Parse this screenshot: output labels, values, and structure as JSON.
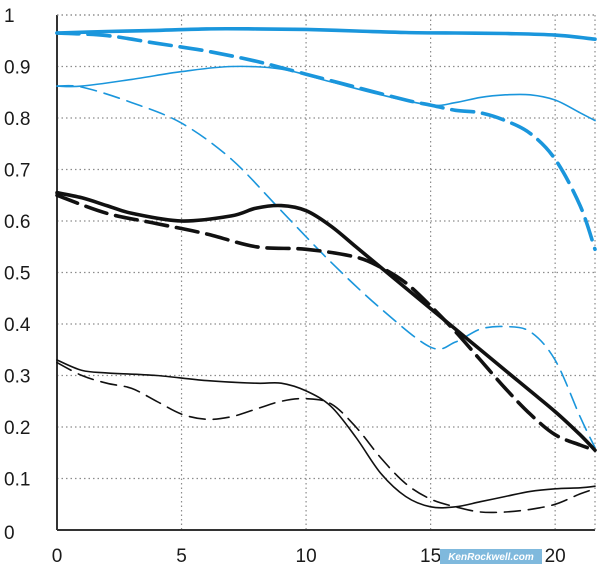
{
  "chart_data": {
    "type": "line",
    "title": "",
    "xlabel": "",
    "ylabel": "",
    "xlim": [
      0,
      21.6
    ],
    "ylim": [
      0,
      1
    ],
    "grid": true,
    "grid_style": "dotted",
    "x_ticks": [
      0,
      5,
      10,
      15,
      20
    ],
    "x_tick_labels": [
      "0",
      "5",
      "10",
      "15",
      "20"
    ],
    "y_ticks": [
      0.1,
      0.2,
      0.3,
      0.4,
      0.5,
      0.6,
      0.7,
      0.8,
      0.9,
      1
    ],
    "y_tick_labels": [
      "0.1",
      "0.2",
      "0.3",
      "0.4",
      "0.5",
      "0.6",
      "0.7",
      "0.8",
      "0.9",
      "1"
    ],
    "zero_label": "0",
    "series": [
      {
        "color": "#1a96dc",
        "width": "thick",
        "dash": "solid",
        "x": [
          0,
          2,
          4,
          6,
          8,
          10,
          12,
          14,
          16,
          18,
          20,
          21.6
        ],
        "y": [
          0.965,
          0.968,
          0.97,
          0.973,
          0.973,
          0.972,
          0.969,
          0.966,
          0.965,
          0.964,
          0.961,
          0.953
        ]
      },
      {
        "color": "#1a96dc",
        "width": "thick",
        "dash": "dashed",
        "x": [
          0,
          2,
          4,
          6,
          8,
          10,
          12,
          14,
          15,
          16,
          17,
          18,
          19,
          20,
          21,
          21.6
        ],
        "y": [
          0.965,
          0.96,
          0.945,
          0.93,
          0.91,
          0.885,
          0.86,
          0.835,
          0.825,
          0.815,
          0.81,
          0.795,
          0.77,
          0.72,
          0.63,
          0.545
        ]
      },
      {
        "color": "#1a96dc",
        "width": "thin",
        "dash": "solid",
        "x": [
          0,
          1,
          3,
          5,
          7,
          9,
          11,
          13,
          15,
          16,
          17,
          18,
          19,
          20,
          21,
          21.6
        ],
        "y": [
          0.862,
          0.862,
          0.875,
          0.89,
          0.9,
          0.895,
          0.87,
          0.845,
          0.825,
          0.83,
          0.84,
          0.845,
          0.845,
          0.835,
          0.81,
          0.795
        ]
      },
      {
        "color": "#1a96dc",
        "width": "thin",
        "dash": "dashed",
        "x": [
          0,
          1,
          3,
          5,
          7,
          9,
          11,
          13,
          15,
          16,
          17,
          18,
          19,
          20,
          21,
          21.6
        ],
        "y": [
          0.862,
          0.86,
          0.83,
          0.79,
          0.72,
          0.62,
          0.52,
          0.43,
          0.355,
          0.365,
          0.39,
          0.395,
          0.385,
          0.33,
          0.22,
          0.16
        ]
      },
      {
        "color": "#111111",
        "width": "thick",
        "dash": "solid",
        "x": [
          0,
          1,
          2,
          3,
          5,
          7,
          8,
          9,
          10,
          11,
          12,
          13,
          14,
          15,
          16,
          17,
          18,
          19,
          20,
          21,
          21.6
        ],
        "y": [
          0.655,
          0.645,
          0.63,
          0.615,
          0.6,
          0.61,
          0.625,
          0.63,
          0.62,
          0.59,
          0.55,
          0.51,
          0.47,
          0.43,
          0.39,
          0.35,
          0.31,
          0.27,
          0.23,
          0.185,
          0.155
        ]
      },
      {
        "color": "#111111",
        "width": "thick",
        "dash": "dashed",
        "x": [
          0,
          2,
          4,
          6,
          8,
          10,
          12,
          13,
          14,
          15,
          16,
          17,
          18,
          19,
          20,
          21,
          21.6
        ],
        "y": [
          0.65,
          0.615,
          0.595,
          0.575,
          0.55,
          0.545,
          0.53,
          0.51,
          0.48,
          0.435,
          0.385,
          0.33,
          0.275,
          0.225,
          0.185,
          0.165,
          0.155
        ]
      },
      {
        "color": "#111111",
        "width": "thin",
        "dash": "solid",
        "x": [
          0,
          1,
          2,
          4,
          6,
          8,
          9,
          10,
          11,
          12,
          13,
          14,
          15,
          16,
          17,
          18,
          19,
          20,
          21,
          21.6
        ],
        "y": [
          0.33,
          0.31,
          0.305,
          0.3,
          0.29,
          0.285,
          0.285,
          0.27,
          0.24,
          0.18,
          0.11,
          0.065,
          0.045,
          0.045,
          0.055,
          0.065,
          0.075,
          0.08,
          0.082,
          0.085
        ]
      },
      {
        "color": "#111111",
        "width": "thin",
        "dash": "dashed",
        "x": [
          0,
          1,
          2,
          3,
          4,
          5,
          6,
          7,
          8,
          9,
          10,
          11,
          12,
          13,
          14,
          15,
          16,
          17,
          18,
          19,
          20,
          21,
          21.6
        ],
        "y": [
          0.325,
          0.3,
          0.285,
          0.275,
          0.25,
          0.225,
          0.215,
          0.22,
          0.235,
          0.25,
          0.255,
          0.245,
          0.2,
          0.14,
          0.09,
          0.06,
          0.045,
          0.035,
          0.035,
          0.04,
          0.05,
          0.07,
          0.08
        ]
      }
    ]
  },
  "watermark": "KenRockwell.com"
}
